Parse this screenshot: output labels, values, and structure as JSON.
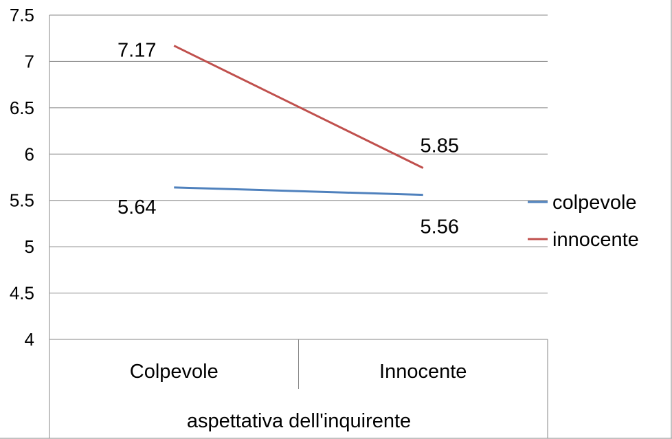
{
  "chart_data": {
    "type": "line",
    "categories": [
      "Colpevole",
      "Innocente"
    ],
    "series": [
      {
        "name": "colpevole",
        "values": [
          5.64,
          5.56
        ],
        "color": "#4F81BD",
        "labels": [
          "5.64",
          "5.56"
        ]
      },
      {
        "name": "innocente",
        "values": [
          7.17,
          5.85
        ],
        "color": "#C0504D",
        "labels": [
          "7.17",
          "5.85"
        ]
      }
    ],
    "title": "",
    "xlabel": "aspettativa dell'inquirente",
    "ylabel": "",
    "ylim": [
      4,
      7.5
    ],
    "yticks": [
      "4",
      "4.5",
      "5",
      "5.5",
      "6",
      "6.5",
      "7",
      "7.5"
    ],
    "grid": true,
    "legend_position": "right"
  }
}
